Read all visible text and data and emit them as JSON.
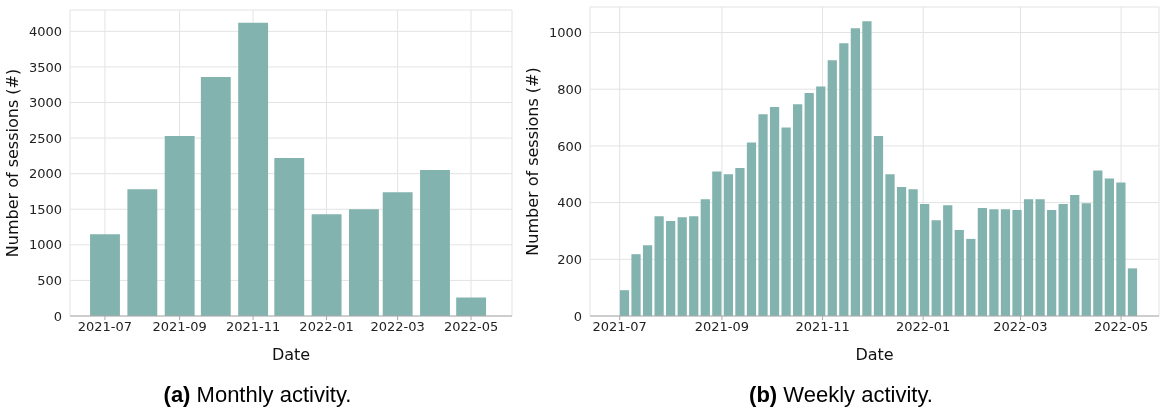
{
  "chart_data": [
    {
      "type": "bar",
      "title": "(a) Monthly activity.",
      "xlabel": "Date",
      "ylabel": "Number of sessions (#)",
      "color": "#82b3ae",
      "grid": true,
      "x": [
        "2021-07",
        "2021-08",
        "2021-09",
        "2021-10",
        "2021-11",
        "2021-12",
        "2022-01",
        "2022-02",
        "2022-03",
        "2022-04",
        "2022-05"
      ],
      "values": [
        1150,
        1780,
        2530,
        3360,
        4120,
        2220,
        1430,
        1500,
        1740,
        2050,
        260
      ],
      "xlim": [
        "2021-06-02",
        "2022-06-04"
      ],
      "xticks": [
        "2021-07",
        "2021-09",
        "2021-11",
        "2022-01",
        "2022-03",
        "2022-05"
      ],
      "ylim": [
        0,
        4300
      ],
      "yticks": [
        0,
        500,
        1000,
        1500,
        2000,
        2500,
        3000,
        3500,
        4000
      ]
    },
    {
      "type": "bar",
      "title": "(b) Weekly activity.",
      "xlabel": "Date",
      "ylabel": "Number of sessions (#)",
      "color": "#82b3ae",
      "grid": true,
      "x": [
        "2021-07-04",
        "2021-07-11",
        "2021-07-18",
        "2021-07-25",
        "2021-08-01",
        "2021-08-08",
        "2021-08-15",
        "2021-08-22",
        "2021-08-29",
        "2021-09-05",
        "2021-09-12",
        "2021-09-19",
        "2021-09-26",
        "2021-10-03",
        "2021-10-10",
        "2021-10-17",
        "2021-10-24",
        "2021-10-31",
        "2021-11-07",
        "2021-11-14",
        "2021-11-21",
        "2021-11-28",
        "2021-12-05",
        "2021-12-12",
        "2021-12-19",
        "2021-12-26",
        "2022-01-02",
        "2022-01-09",
        "2022-01-16",
        "2022-01-23",
        "2022-01-30",
        "2022-02-06",
        "2022-02-13",
        "2022-02-20",
        "2022-02-27",
        "2022-03-06",
        "2022-03-13",
        "2022-03-20",
        "2022-03-27",
        "2022-04-03",
        "2022-04-10",
        "2022-04-17",
        "2022-04-24",
        "2022-05-01",
        "2022-05-08"
      ],
      "values": [
        91,
        218,
        250,
        352,
        335,
        348,
        352,
        412,
        510,
        500,
        522,
        612,
        712,
        737,
        665,
        747,
        787,
        810,
        902,
        962,
        1015,
        1040,
        635,
        500,
        455,
        447,
        395,
        338,
        391,
        303,
        272,
        381,
        377,
        377,
        374,
        412,
        412,
        374,
        395,
        427,
        398,
        513,
        485,
        471,
        168
      ],
      "xlim": [
        "2021-06-13",
        "2022-05-24"
      ],
      "xticks": [
        "2021-07",
        "2021-09",
        "2021-11",
        "2022-01",
        "2022-03",
        "2022-05"
      ],
      "ylim": [
        0,
        1090
      ],
      "yticks": [
        0,
        200,
        400,
        600,
        800,
        1000
      ]
    }
  ]
}
